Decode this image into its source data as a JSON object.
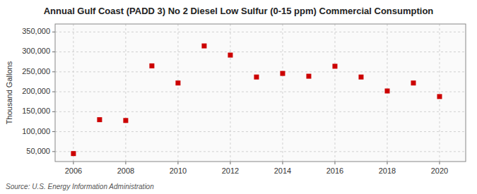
{
  "chart_data": {
    "type": "scatter",
    "title": "Annual Gulf Coast (PADD 3) No 2 Diesel Low Sulfur (0-15 ppm) Commercial Consumption",
    "ylabel": "Thousand Gallons",
    "source": "Source: U.S. Energy Information Administration",
    "x": [
      2006,
      2007,
      2008,
      2009,
      2010,
      2011,
      2012,
      2013,
      2014,
      2015,
      2016,
      2017,
      2018,
      2019,
      2020
    ],
    "values": [
      45000,
      130000,
      128000,
      265000,
      222000,
      315000,
      292000,
      237000,
      246000,
      239000,
      264000,
      237000,
      202000,
      222000,
      188000
    ],
    "color": "#cc0000",
    "marker": "square",
    "grid": true,
    "xlim": [
      2005.3,
      2021.0
    ],
    "xticks": [
      2006,
      2008,
      2010,
      2012,
      2014,
      2016,
      2018,
      2020
    ],
    "ylim": [
      25000,
      370000
    ],
    "yticks": [
      {
        "value": 50000,
        "label": "50,000"
      },
      {
        "value": 100000,
        "label": "100,000"
      },
      {
        "value": 150000,
        "label": "150,000"
      },
      {
        "value": 200000,
        "label": "200,000"
      },
      {
        "value": 250000,
        "label": "250,000"
      },
      {
        "value": 300000,
        "label": "300,000"
      },
      {
        "value": 350000,
        "label": "350,000"
      }
    ]
  }
}
